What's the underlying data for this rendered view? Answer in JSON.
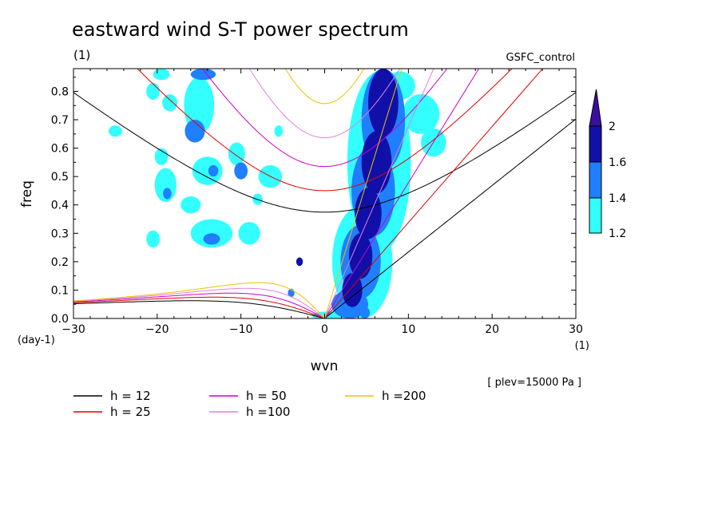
{
  "chart_data": {
    "type": "heatmap",
    "title": "eastward wind S-T power spectrum",
    "subtitle_left": "(1)",
    "subtitle_right": "GSFC_control",
    "xlabel": "wvn",
    "ylabel": "freq",
    "x_unit_label": "(1)",
    "y_unit_label": "(day-1)",
    "xlim": [
      -30,
      30
    ],
    "ylim": [
      0,
      0.88
    ],
    "xticks": [
      -30,
      -20,
      -10,
      0,
      10,
      20,
      30
    ],
    "yticks": [
      0,
      0.1,
      0.2,
      0.3,
      0.4,
      0.5,
      0.6,
      0.7,
      0.8
    ],
    "note": "[ plev=15000 Pa ]",
    "colorbar": {
      "levels": [
        1.2,
        1.4,
        1.6,
        2
      ],
      "labels": [
        "1.2",
        "1.4",
        "1.6",
        "2"
      ],
      "colors": [
        "#33ffff",
        "#1f7fff",
        "#1010a8",
        "#3a0fa0"
      ]
    },
    "dispersion_curves": [
      {
        "h": 12,
        "label": "h = 12",
        "color": "#000000"
      },
      {
        "h": 25,
        "label": "h = 25",
        "color": "#e00000"
      },
      {
        "h": 50,
        "label": "h = 50",
        "color": "#cc00cc"
      },
      {
        "h": 100,
        "label": "h =100",
        "color": "#e080e0"
      },
      {
        "h": 200,
        "label": "h =200",
        "color": "#f0c000"
      }
    ],
    "power_regions": [
      {
        "x": 7,
        "y": 0.76,
        "rx": 1.8,
        "ry": 0.12,
        "level": 2
      },
      {
        "x": 6.2,
        "y": 0.55,
        "rx": 1.8,
        "ry": 0.11,
        "level": 2
      },
      {
        "x": 5.2,
        "y": 0.37,
        "rx": 1.6,
        "ry": 0.09,
        "level": 2
      },
      {
        "x": 4.3,
        "y": 0.22,
        "rx": 1.4,
        "ry": 0.08,
        "level": 2
      },
      {
        "x": 3.3,
        "y": 0.1,
        "rx": 1.2,
        "ry": 0.06,
        "level": 2
      },
      {
        "x": 7,
        "y": 0.7,
        "rx": 2.6,
        "ry": 0.18,
        "level": 1
      },
      {
        "x": 5.8,
        "y": 0.45,
        "rx": 2.6,
        "ry": 0.16,
        "level": 1
      },
      {
        "x": 4.3,
        "y": 0.2,
        "rx": 2.4,
        "ry": 0.13,
        "level": 1
      },
      {
        "x": 3,
        "y": 0.05,
        "rx": 2.2,
        "ry": 0.05,
        "level": 1
      },
      {
        "x": 6.5,
        "y": 0.55,
        "rx": 3.8,
        "ry": 0.32,
        "level": 0
      },
      {
        "x": 4.5,
        "y": 0.2,
        "rx": 3.6,
        "ry": 0.2,
        "level": 0
      },
      {
        "x": 11.5,
        "y": 0.72,
        "rx": 2.2,
        "ry": 0.07,
        "level": 0
      },
      {
        "x": 13,
        "y": 0.62,
        "rx": 1.5,
        "ry": 0.05,
        "level": 0
      },
      {
        "x": 9,
        "y": 0.82,
        "rx": 1.8,
        "ry": 0.05,
        "level": 0
      },
      {
        "x": -15,
        "y": 0.75,
        "rx": 1.8,
        "ry": 0.1,
        "level": 0
      },
      {
        "x": -15.5,
        "y": 0.66,
        "rx": 1.2,
        "ry": 0.04,
        "level": 1
      },
      {
        "x": -14,
        "y": 0.52,
        "rx": 1.8,
        "ry": 0.05,
        "level": 0
      },
      {
        "x": -13.3,
        "y": 0.52,
        "rx": 0.6,
        "ry": 0.02,
        "level": 1
      },
      {
        "x": -19,
        "y": 0.47,
        "rx": 1.3,
        "ry": 0.06,
        "level": 0
      },
      {
        "x": -18.8,
        "y": 0.44,
        "rx": 0.5,
        "ry": 0.02,
        "level": 1
      },
      {
        "x": -16,
        "y": 0.4,
        "rx": 1.2,
        "ry": 0.03,
        "level": 0
      },
      {
        "x": -13.5,
        "y": 0.3,
        "rx": 2.5,
        "ry": 0.05,
        "level": 0
      },
      {
        "x": -13.5,
        "y": 0.28,
        "rx": 1,
        "ry": 0.02,
        "level": 1
      },
      {
        "x": -9,
        "y": 0.3,
        "rx": 1.3,
        "ry": 0.04,
        "level": 0
      },
      {
        "x": -6.5,
        "y": 0.5,
        "rx": 1.4,
        "ry": 0.04,
        "level": 0
      },
      {
        "x": -10.5,
        "y": 0.58,
        "rx": 1,
        "ry": 0.04,
        "level": 0
      },
      {
        "x": -20.5,
        "y": 0.28,
        "rx": 0.8,
        "ry": 0.03,
        "level": 0
      },
      {
        "x": -25,
        "y": 0.66,
        "rx": 0.8,
        "ry": 0.02,
        "level": 0
      },
      {
        "x": -18.5,
        "y": 0.76,
        "rx": 0.9,
        "ry": 0.03,
        "level": 0
      },
      {
        "x": -20.5,
        "y": 0.8,
        "rx": 0.8,
        "ry": 0.03,
        "level": 0
      },
      {
        "x": -19.5,
        "y": 0.57,
        "rx": 0.8,
        "ry": 0.03,
        "level": 0
      },
      {
        "x": -14.5,
        "y": 0.86,
        "rx": 1.5,
        "ry": 0.02,
        "level": 1
      },
      {
        "x": -19.5,
        "y": 0.86,
        "rx": 1,
        "ry": 0.02,
        "level": 0
      },
      {
        "x": -3,
        "y": 0.2,
        "rx": 0.4,
        "ry": 0.015,
        "level": 2
      },
      {
        "x": -4,
        "y": 0.09,
        "rx": 0.4,
        "ry": 0.015,
        "level": 1
      },
      {
        "x": -8,
        "y": 0.42,
        "rx": 0.6,
        "ry": 0.02,
        "level": 0
      },
      {
        "x": -10,
        "y": 0.52,
        "rx": 0.8,
        "ry": 0.03,
        "level": 1
      },
      {
        "x": -5.5,
        "y": 0.66,
        "rx": 0.5,
        "ry": 0.02,
        "level": 0
      },
      {
        "x": 4.8,
        "y": 0.02,
        "rx": 0.6,
        "ry": 0.02,
        "level": 1
      },
      {
        "x": 0.5,
        "y": 0.01,
        "rx": 2,
        "ry": 0.015,
        "level": 0
      }
    ]
  }
}
